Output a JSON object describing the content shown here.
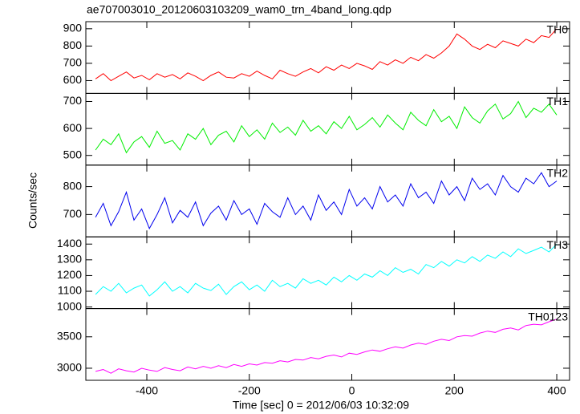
{
  "chart_data": {
    "type": "line",
    "title": "ae707003010_20120603103209_wam0_trn_4band_long.qdp",
    "x_label": "Time [sec] 0 = 2012/06/03 10:32:09",
    "y_label": "Counts/sec",
    "xlim": [
      -519,
      425
    ],
    "xticks": [
      -400,
      -200,
      0,
      200,
      400
    ],
    "x": [
      -500,
      -485,
      -470,
      -455,
      -440,
      -425,
      -410,
      -395,
      -380,
      -365,
      -350,
      -335,
      -320,
      -305,
      -290,
      -275,
      -260,
      -245,
      -230,
      -215,
      -200,
      -185,
      -170,
      -155,
      -140,
      -125,
      -110,
      -95,
      -80,
      -65,
      -50,
      -35,
      -20,
      -5,
      10,
      25,
      40,
      55,
      70,
      85,
      100,
      115,
      130,
      145,
      160,
      175,
      190,
      205,
      220,
      235,
      250,
      265,
      280,
      295,
      310,
      325,
      340,
      355,
      370,
      385,
      400
    ],
    "series": [
      {
        "name": "TH0",
        "color": "#ff0000",
        "ylim": [
          526,
          941
        ],
        "yticks": [
          600,
          700,
          800,
          900
        ],
        "values": [
          610,
          640,
          600,
          625,
          650,
          615,
          630,
          605,
          640,
          620,
          635,
          610,
          645,
          625,
          600,
          630,
          650,
          620,
          615,
          640,
          625,
          655,
          630,
          610,
          660,
          640,
          625,
          650,
          670,
          645,
          680,
          660,
          690,
          670,
          700,
          685,
          665,
          710,
          690,
          720,
          700,
          735,
          715,
          750,
          730,
          760,
          800,
          870,
          840,
          800,
          780,
          810,
          790,
          830,
          815,
          800,
          840,
          820,
          860,
          850,
          900
        ]
      },
      {
        "name": "TH1",
        "color": "#00ee00",
        "ylim": [
          464,
          730
        ],
        "yticks": [
          500,
          600,
          700
        ],
        "values": [
          520,
          560,
          540,
          580,
          510,
          550,
          570,
          530,
          590,
          545,
          555,
          520,
          580,
          560,
          600,
          540,
          575,
          590,
          550,
          610,
          570,
          595,
          560,
          620,
          585,
          605,
          575,
          630,
          590,
          610,
          580,
          625,
          600,
          645,
          595,
          615,
          640,
          605,
          650,
          620,
          595,
          660,
          630,
          610,
          670,
          625,
          645,
          600,
          680,
          640,
          620,
          665,
          690,
          635,
          655,
          700,
          640,
          675,
          660,
          690,
          650
        ]
      },
      {
        "name": "TH2",
        "color": "#0000ee",
        "ylim": [
          620,
          877
        ],
        "yticks": [
          700,
          800
        ],
        "values": [
          690,
          740,
          660,
          710,
          780,
          680,
          720,
          650,
          700,
          760,
          670,
          715,
          690,
          745,
          660,
          705,
          730,
          680,
          750,
          700,
          720,
          665,
          740,
          710,
          690,
          760,
          700,
          730,
          680,
          770,
          715,
          745,
          700,
          790,
          730,
          760,
          720,
          800,
          745,
          770,
          730,
          810,
          760,
          780,
          740,
          820,
          770,
          800,
          750,
          830,
          790,
          810,
          770,
          840,
          800,
          780,
          830,
          810,
          850,
          800,
          820
        ]
      },
      {
        "name": "TH3",
        "color": "#00ffff",
        "ylim": [
          990,
          1446
        ],
        "yticks": [
          1000,
          1100,
          1200,
          1300,
          1400
        ],
        "values": [
          1080,
          1130,
          1100,
          1150,
          1090,
          1120,
          1140,
          1070,
          1110,
          1160,
          1100,
          1130,
          1090,
          1150,
          1120,
          1105,
          1145,
          1080,
          1130,
          1160,
          1110,
          1140,
          1100,
          1170,
          1130,
          1150,
          1120,
          1180,
          1150,
          1170,
          1140,
          1190,
          1160,
          1200,
          1170,
          1210,
          1190,
          1230,
          1200,
          1250,
          1220,
          1240,
          1210,
          1270,
          1250,
          1290,
          1260,
          1300,
          1280,
          1320,
          1290,
          1330,
          1310,
          1350,
          1320,
          1370,
          1340,
          1360,
          1380,
          1350,
          1400
        ]
      },
      {
        "name": "TH0123",
        "color": "#ff00ff",
        "ylim": [
          2808,
          3949
        ],
        "yticks": [
          3000,
          3500
        ],
        "values": [
          2950,
          2980,
          2920,
          2990,
          2960,
          2940,
          3000,
          2970,
          2950,
          3010,
          2980,
          2960,
          3020,
          2990,
          3030,
          3000,
          3040,
          3010,
          3060,
          3030,
          3070,
          3050,
          3090,
          3080,
          3120,
          3100,
          3140,
          3130,
          3170,
          3150,
          3190,
          3210,
          3180,
          3240,
          3220,
          3260,
          3290,
          3270,
          3310,
          3340,
          3320,
          3370,
          3400,
          3380,
          3430,
          3460,
          3440,
          3500,
          3520,
          3510,
          3560,
          3590,
          3570,
          3620,
          3640,
          3610,
          3680,
          3700,
          3690,
          3740,
          3780
        ]
      }
    ]
  }
}
